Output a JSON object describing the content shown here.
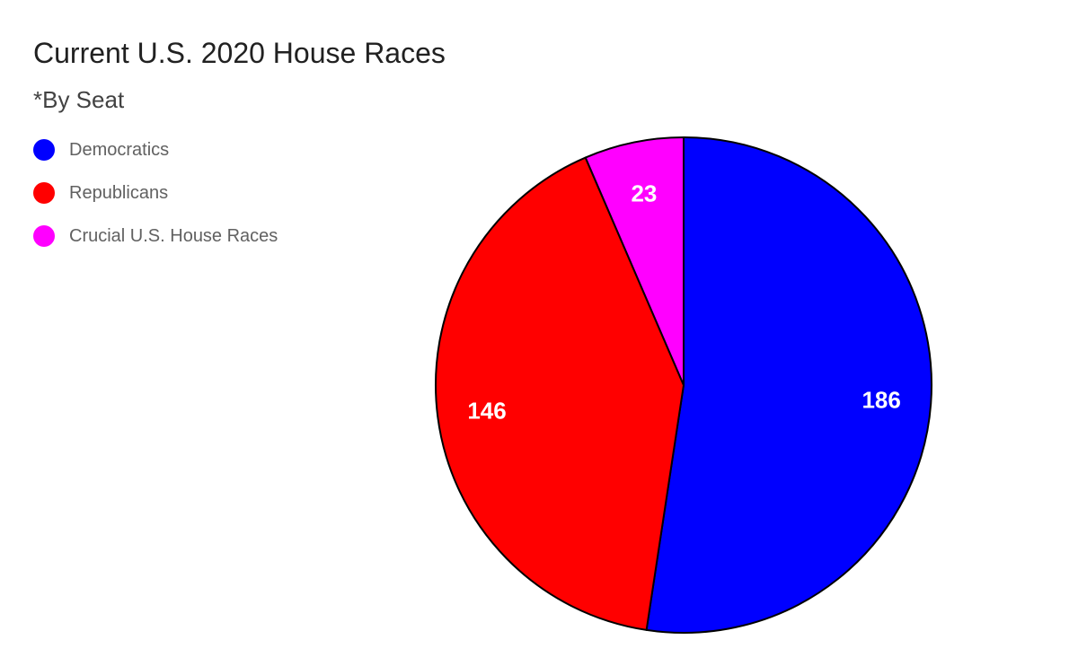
{
  "chart_data": {
    "type": "pie",
    "title": "Current U.S. 2020 House Races",
    "subtitle": "*By Seat",
    "legend_position": "top-left",
    "slices": [
      {
        "label": "Democratics",
        "value": 186,
        "color": "#0000ff"
      },
      {
        "label": "Republicans",
        "value": 146,
        "color": "#ff0000"
      },
      {
        "label": "Crucial U.S. House Races",
        "value": 23,
        "color": "#ff00ff"
      }
    ]
  }
}
